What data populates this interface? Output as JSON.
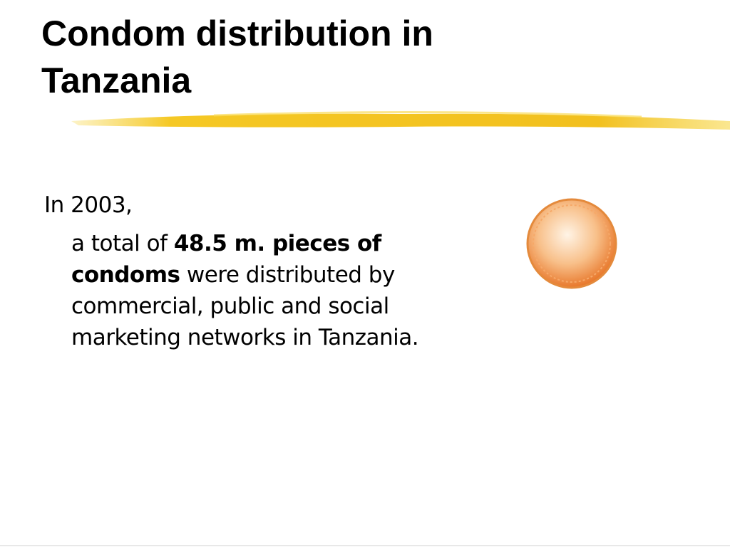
{
  "slide": {
    "title": "Condom distribution in Tanzania",
    "body": {
      "lead": "In 2003,",
      "text_parts": [
        "a total of ",
        "48.5 m. pieces of condoms",
        " were distributed by commercial, public and social marketing networks in Tanzania."
      ]
    }
  }
}
